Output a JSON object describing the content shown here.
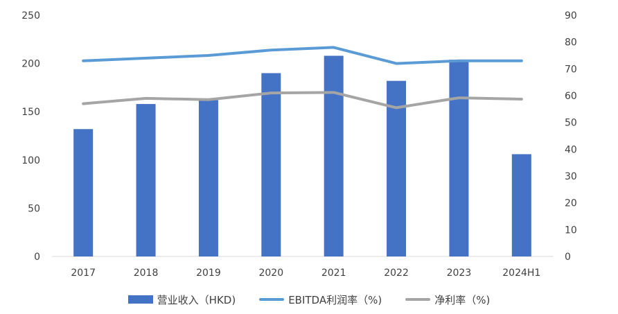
{
  "chart_data": {
    "type": "bar",
    "categories": [
      "2017",
      "2018",
      "2019",
      "2020",
      "2021",
      "2022",
      "2023",
      "2024H1"
    ],
    "series": [
      {
        "name": "营业收入（HKD)",
        "kind": "bar",
        "axis": "left",
        "color": "#4472c4",
        "values": [
          132,
          158,
          162,
          190,
          208,
          182,
          204,
          106
        ]
      },
      {
        "name": "EBITDA利润率（%)",
        "kind": "line",
        "axis": "right",
        "color": "#5b9bd5",
        "values": [
          73,
          74,
          75,
          77,
          78,
          72,
          73,
          73
        ]
      },
      {
        "name": "净利率（%)",
        "kind": "line",
        "axis": "right",
        "color": "#a5a5a5",
        "values": [
          57,
          59,
          58.5,
          61,
          61.2,
          55.5,
          59.2,
          58.7
        ]
      }
    ],
    "left_axis": {
      "ylim": [
        0,
        250
      ],
      "ticks": [
        "0",
        "50",
        "100",
        "150",
        "200",
        "250"
      ]
    },
    "right_axis": {
      "ylim": [
        0,
        90
      ],
      "ticks": [
        "0",
        "10",
        "20",
        "30",
        "40",
        "50",
        "60",
        "70",
        "80",
        "90"
      ]
    },
    "grid": false,
    "legend_position": "bottom"
  }
}
